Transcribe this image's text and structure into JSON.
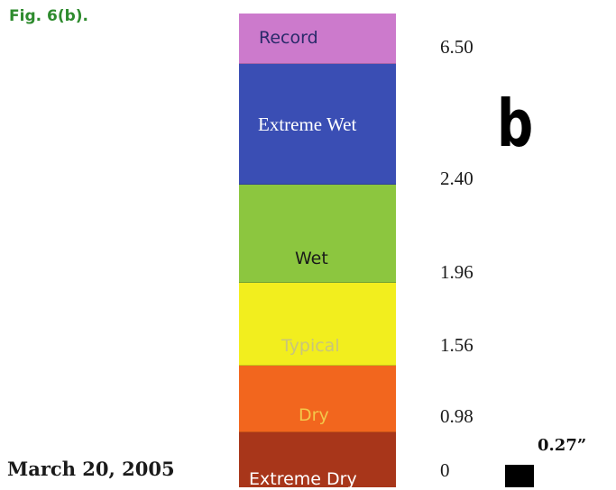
{
  "figure_label": "Fig. 6(b).",
  "panel_letter": "b",
  "date": "March 20, 2005",
  "value_label": "0.27”",
  "bands": [
    {
      "label": "Record",
      "color": "#cc7acc",
      "text_color": "#2a2a6a"
    },
    {
      "label": "Extreme Wet",
      "color": "#3a4eb4",
      "text_color": "#ffffff"
    },
    {
      "label": "Wet",
      "color": "#8cc63f",
      "text_color": "#1a1a1a"
    },
    {
      "label": "Typical",
      "color": "#f2ee1e",
      "text_color": "#c9c57a"
    },
    {
      "label": "Dry",
      "color": "#f2661e",
      "text_color": "#f3c84a"
    },
    {
      "label": "Extreme Dry",
      "color": "#a8361a",
      "text_color": "#ffffff"
    }
  ],
  "thresholds": [
    "6.50",
    "2.40",
    "1.96",
    "1.56",
    "0.98",
    "0"
  ]
}
